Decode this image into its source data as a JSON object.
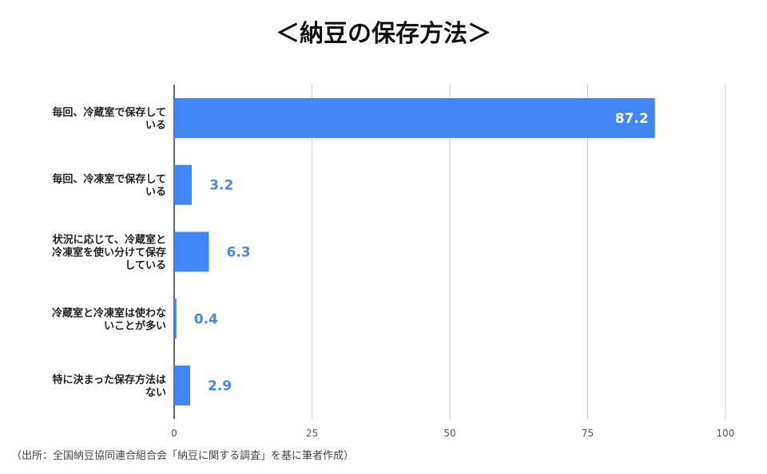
{
  "chart_data": {
    "type": "bar",
    "orientation": "horizontal",
    "title": "＜納豆の保存方法＞",
    "categories": [
      [
        "毎回、冷蔵室で保存して",
        "いる"
      ],
      [
        "毎回、冷凍室で保存して",
        "いる"
      ],
      [
        "状況に応じて、冷蔵室と",
        "冷凍室を使い分けて保存",
        "している"
      ],
      [
        "冷蔵室と冷凍室は使わな",
        "いことが多い"
      ],
      [
        "特に決まった保存方法は",
        "ない"
      ]
    ],
    "values": [
      87.2,
      3.2,
      6.3,
      0.4,
      2.9
    ],
    "value_labels": [
      "87.2",
      "3.2",
      "6.3",
      "0.4",
      "2.9"
    ],
    "xlim": [
      0,
      100
    ],
    "xticks": [
      0,
      25,
      50,
      75,
      100
    ],
    "xtick_labels": [
      "0",
      "25",
      "50",
      "75",
      "100"
    ],
    "grid": true,
    "legend": "none",
    "colors": {
      "bar": "#4285f4",
      "label_outside": "#4a86e8",
      "label_inside": "#ffffff",
      "grid": "#cccccc",
      "axis": "#333333"
    }
  },
  "source_note": "（出所：全国納豆協同連合組合会「納豆に関する調査」を基に筆者作成）"
}
